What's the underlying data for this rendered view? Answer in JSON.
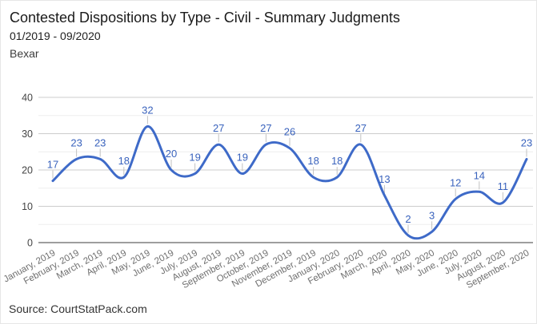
{
  "header": {
    "title": "Contested Dispositions by Type - Civil - Summary Judgments",
    "date_range": "01/2019 - 09/2020",
    "region": "Bexar"
  },
  "footer": {
    "source": "Source: CourtStatPack.com"
  },
  "chart_data": {
    "type": "line",
    "title": "Contested Dispositions by Type - Civil - Summary Judgments",
    "subtitle": "01/2019 - 09/2020",
    "region": "Bexar",
    "xlabel": "",
    "ylabel": "",
    "categories": [
      "January, 2019",
      "February, 2019",
      "March, 2019",
      "April, 2019",
      "May, 2019",
      "June, 2019",
      "July, 2019",
      "August, 2019",
      "September, 2019",
      "October, 2019",
      "November, 2019",
      "December, 2019",
      "January, 2020",
      "February, 2020",
      "March, 2020",
      "April, 2020",
      "May, 2020",
      "June, 2020",
      "July, 2020",
      "August, 2020",
      "September, 2020"
    ],
    "values": [
      17,
      23,
      23,
      18,
      32,
      20,
      19,
      27,
      19,
      27,
      26,
      18,
      18,
      27,
      13,
      2,
      3,
      12,
      14,
      11,
      23
    ],
    "ylim": [
      0,
      40
    ],
    "yticks": [
      0,
      10,
      20,
      30,
      40
    ],
    "minor_yticks": [
      5,
      15,
      25,
      35
    ],
    "grid": true,
    "legend": "none",
    "smooth": true,
    "data_labels": true,
    "colors": {
      "series_line": "#3e6ac8",
      "point_label": "#3a63bd",
      "annotation_stem": "#c2c2c2",
      "grid_major": "#cccccc",
      "grid_minor": "#ededed",
      "baseline": "#3c3c3c",
      "y_tick_label": "#444444",
      "x_tick_label": "#6e6e6e"
    }
  }
}
